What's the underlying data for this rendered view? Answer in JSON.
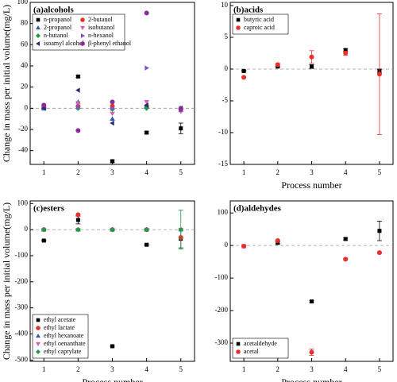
{
  "chart_data": [
    {
      "type": "scatter",
      "title": "(a)alcohols",
      "ylabel": "Change in mass per initial volume(mg/L)",
      "x": [
        1,
        2,
        3,
        4,
        5
      ],
      "xlim": [
        0.6,
        5.4
      ],
      "xticks": [
        1,
        2,
        3,
        4,
        5
      ],
      "ylim": [
        -53,
        100
      ],
      "yticks": [
        -40,
        -20,
        0,
        20,
        40,
        60,
        80,
        100
      ],
      "reference_line": 0,
      "legend": "upper left",
      "legend_columns": 2,
      "series": [
        {
          "name": "n-propanol",
          "color": "#000000",
          "marker": "square",
          "values": [
            0,
            30,
            -50,
            -23,
            -19
          ],
          "errors": [
            0.5,
            1,
            1,
            1,
            5
          ]
        },
        {
          "name": "2-butanol",
          "color": "#e8312f",
          "marker": "circle",
          "values": [
            2,
            2,
            2,
            2,
            0
          ]
        },
        {
          "name": "2-propanol",
          "color": "#2a5db0",
          "marker": "triangle-up",
          "values": [
            0,
            6,
            -10,
            2,
            -2
          ]
        },
        {
          "name": "isobutanol",
          "color": "#d45fb5",
          "marker": "triangle-down",
          "values": [
            0,
            5,
            -5,
            6,
            -3
          ]
        },
        {
          "name": "n-butanol",
          "color": "#1f9c4a",
          "marker": "diamond",
          "values": [
            0,
            0,
            -1,
            0,
            0
          ]
        },
        {
          "name": "n-hexanol",
          "color": "#7b52c7",
          "marker": "triangle-right",
          "values": [
            0,
            1,
            0,
            38,
            0
          ]
        },
        {
          "name": "isoamyl alcohol",
          "color": "#2b2d6e",
          "marker": "triangle-left",
          "values": [
            0,
            17,
            -14,
            3,
            0
          ]
        },
        {
          "name": "β-phenyl ethanol",
          "color": "#8b2a9a",
          "marker": "circle",
          "values": [
            3,
            -21,
            6,
            90,
            -1
          ]
        }
      ]
    },
    {
      "type": "scatter",
      "title": "(b)acids",
      "xlabel": "Process number",
      "x": [
        1,
        2,
        3,
        4,
        5
      ],
      "xlim": [
        0.6,
        5.4
      ],
      "xticks": [
        1,
        2,
        3,
        4,
        5
      ],
      "ylim": [
        -15,
        10.5
      ],
      "yticks": [
        -15,
        -10,
        -5,
        0,
        5,
        10
      ],
      "reference_line": 0,
      "legend": "upper left",
      "legend_columns": 1,
      "series": [
        {
          "name": "butyric acid",
          "color": "#000000",
          "marker": "square",
          "values": [
            -0.3,
            0.4,
            0.4,
            3,
            -0.3
          ],
          "errors": [
            0.1,
            0.1,
            0.3,
            0.2,
            0.3
          ]
        },
        {
          "name": "caproic acid",
          "color": "#e8312f",
          "marker": "circle",
          "values": [
            -1.3,
            0.7,
            1.9,
            2.5,
            -0.8
          ],
          "errors": [
            0.1,
            0.2,
            1,
            0.3,
            9.5
          ]
        }
      ]
    },
    {
      "type": "scatter",
      "title": "(c)esters",
      "ylabel": "Change in mass per initial volume(mg/L)",
      "xlabel": "Process number",
      "x": [
        1,
        2,
        3,
        4,
        5
      ],
      "xlim": [
        0.6,
        5.4
      ],
      "xticks": [
        1,
        2,
        3,
        4,
        5
      ],
      "ylim": [
        -505,
        110
      ],
      "yticks": [
        -500,
        -400,
        -300,
        -200,
        -100,
        0,
        100
      ],
      "reference_line": 0,
      "legend": "lower left",
      "legend_columns": 1,
      "series": [
        {
          "name": "ethyl acetate",
          "color": "#000000",
          "marker": "square",
          "values": [
            -42,
            37,
            -447,
            -58,
            -35
          ],
          "errors": [
            2,
            15,
            3,
            3,
            35
          ]
        },
        {
          "name": "ethyl lactate",
          "color": "#e8312f",
          "marker": "circle",
          "values": [
            0,
            57,
            0,
            0,
            -30
          ]
        },
        {
          "name": "ethyl hexanoate",
          "color": "#2a5db0",
          "marker": "triangle-up",
          "values": [
            0,
            0,
            0,
            0,
            0
          ]
        },
        {
          "name": "ethyl oenanthate",
          "color": "#d45fb5",
          "marker": "triangle-down",
          "values": [
            0,
            0,
            0,
            0,
            0
          ]
        },
        {
          "name": "ethyl caprylate",
          "color": "#1f9c4a",
          "marker": "diamond",
          "values": [
            0,
            0,
            0,
            0,
            0
          ],
          "errors": [
            1,
            1,
            1,
            1,
            75
          ]
        }
      ]
    },
    {
      "type": "scatter",
      "title": "(d)aldehydes",
      "xlabel": "Process number",
      "x": [
        1,
        2,
        3,
        4,
        5
      ],
      "xlim": [
        0.6,
        5.4
      ],
      "xticks": [
        1,
        2,
        3,
        4,
        5
      ],
      "ylim": [
        -356,
        137
      ],
      "yticks": [
        -300,
        -200,
        -100,
        0,
        100
      ],
      "reference_line": 0,
      "legend": "lower left",
      "legend_columns": 1,
      "series": [
        {
          "name": "acetaldehyde",
          "color": "#000000",
          "marker": "square",
          "values": [
            -2,
            8,
            -172,
            20,
            45
          ],
          "errors": [
            1,
            3,
            3,
            3,
            30
          ]
        },
        {
          "name": "acetal",
          "color": "#e8312f",
          "marker": "circle",
          "values": [
            -2,
            15,
            -328,
            -42,
            -22
          ],
          "errors": [
            1,
            2,
            10,
            2,
            2
          ]
        }
      ]
    }
  ]
}
